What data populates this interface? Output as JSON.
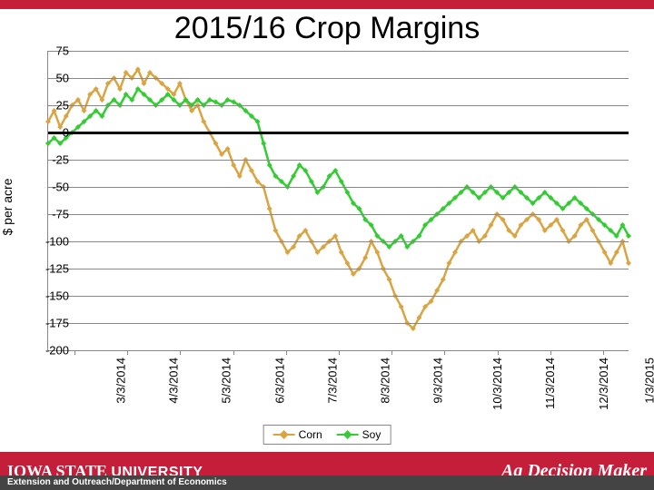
{
  "title": "2015/16 Crop Margins",
  "y_axis_title": "$ per acre",
  "footer_org": "IOWA STATE",
  "footer_univ": "UNIVERSITY",
  "footer_sub": "Extension and Outreach/Department of Economics",
  "footer_right": "Ag Decision Maker",
  "legend": [
    {
      "label": "Corn",
      "color": "#d9a441"
    },
    {
      "label": "Soy",
      "color": "#33cc33"
    }
  ],
  "chart": {
    "type": "line",
    "background_color": "#ffffff",
    "grid_color": "#888888",
    "ylim": [
      -200,
      75
    ],
    "ytick_step": 25,
    "y_ticks": [
      75,
      50,
      25,
      0,
      -25,
      -50,
      -75,
      -100,
      -125,
      -150,
      -175,
      -200
    ],
    "x_labels": [
      "3/3/2014",
      "4/3/2014",
      "5/3/2014",
      "6/3/2014",
      "7/3/2014",
      "8/3/2014",
      "9/3/2014",
      "10/3/2014",
      "11/3/2014",
      "12/3/2014",
      "1/3/2015"
    ],
    "line_width": 2.5,
    "marker_size": 6,
    "marker_style": "diamond",
    "series": {
      "corn": {
        "color": "#d9a441",
        "data": [
          10,
          20,
          5,
          15,
          25,
          30,
          20,
          35,
          40,
          30,
          45,
          50,
          40,
          55,
          50,
          58,
          45,
          55,
          50,
          45,
          40,
          35,
          45,
          30,
          20,
          25,
          10,
          0,
          -10,
          -20,
          -15,
          -30,
          -40,
          -25,
          -35,
          -45,
          -50,
          -70,
          -90,
          -100,
          -110,
          -105,
          -95,
          -90,
          -100,
          -110,
          -105,
          -100,
          -95,
          -110,
          -120,
          -130,
          -125,
          -115,
          -100,
          -110,
          -125,
          -135,
          -150,
          -160,
          -175,
          -180,
          -170,
          -160,
          -155,
          -145,
          -135,
          -120,
          -110,
          -100,
          -95,
          -90,
          -100,
          -95,
          -85,
          -75,
          -80,
          -90,
          -95,
          -85,
          -80,
          -75,
          -80,
          -90,
          -85,
          -80,
          -90,
          -100,
          -95,
          -85,
          -80,
          -90,
          -100,
          -110,
          -120,
          -110,
          -100,
          -120
        ]
      },
      "soy": {
        "color": "#33cc33",
        "data": [
          -10,
          -5,
          -10,
          -5,
          0,
          5,
          10,
          15,
          20,
          15,
          25,
          30,
          25,
          35,
          30,
          40,
          35,
          30,
          25,
          30,
          35,
          30,
          25,
          30,
          25,
          30,
          25,
          30,
          28,
          25,
          30,
          28,
          25,
          20,
          15,
          10,
          -10,
          -30,
          -40,
          -45,
          -50,
          -40,
          -30,
          -35,
          -45,
          -55,
          -50,
          -40,
          -35,
          -45,
          -55,
          -65,
          -70,
          -80,
          -85,
          -95,
          -100,
          -105,
          -100,
          -95,
          -105,
          -100,
          -95,
          -85,
          -80,
          -75,
          -70,
          -65,
          -60,
          -55,
          -50,
          -55,
          -60,
          -55,
          -50,
          -55,
          -60,
          -55,
          -50,
          -55,
          -60,
          -65,
          -60,
          -55,
          -60,
          -65,
          -70,
          -65,
          -60,
          -65,
          -70,
          -75,
          -80,
          -85,
          -90,
          -95,
          -85,
          -95
        ]
      }
    }
  }
}
